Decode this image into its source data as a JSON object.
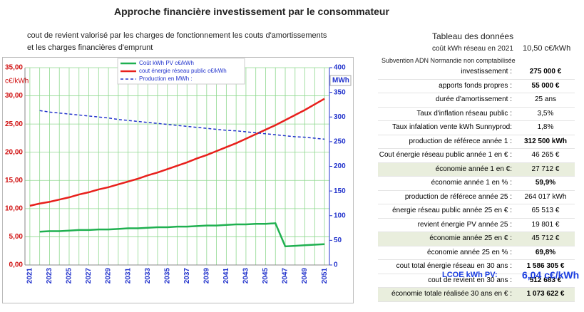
{
  "header": {
    "title": "Approche financière investissement par le consommateur",
    "lines": [
      "cout de revient valorisé  par les charges de  fonctionnement les couts d'amortissements",
      "et les charges financières d'emprunt"
    ]
  },
  "panel": {
    "title": "Tableau des données",
    "ref_label": "coût kWh réseau en 2021",
    "ref_value": "10,50 c€/kWh",
    "note": "Subvention ADN Normandie non comptabilisée",
    "rows": [
      [
        "investissement :",
        "275 000 €"
      ],
      [
        "apports fonds propres :",
        "55 000 €"
      ],
      [
        "durée d'amortissement :",
        "25 ans"
      ],
      [
        "Taux d'inflation réseau public :",
        "3,5%"
      ],
      [
        "Taux infalation vente kWh Sunnyprod:",
        "1,8%"
      ],
      [
        "production de référece année 1 :",
        "312 500 kWh"
      ],
      [
        "Cout énergie réseau public année 1 en € :",
        "46 265 €"
      ],
      [
        "économie année 1 en €:",
        "27 712 €"
      ],
      [
        "économie année 1 en %  :",
        "59,9%"
      ],
      [
        "production de référece année 25 :",
        "264 017 kWh"
      ],
      [
        "énergie réseau public année 25 en € :",
        "65 513 €"
      ],
      [
        "revient énergie PV année 25 :",
        "19 801 €"
      ],
      [
        "économie année  25 en € :",
        "45 712 €"
      ],
      [
        "économie année  25 en % :",
        "69,8%"
      ],
      [
        "cout total énergie réseau en 30 ans :",
        "1 586 305 €"
      ],
      [
        "cout de revient en 30 ans :",
        "512 683 €"
      ],
      [
        "économie totale réalisée 30 ans  en € :",
        "1 073 622 €"
      ]
    ],
    "lcoe_label": "LCOE kWh PV:",
    "lcoe_value": "6,04 c€/kWh"
  },
  "chart_data": {
    "type": "line",
    "y_label": "c€/kWh",
    "y2_label": "MWh",
    "grid": true,
    "categories": [
      "2021",
      null,
      "2023",
      null,
      "2025",
      null,
      "2027",
      null,
      "2029",
      null,
      "2031",
      null,
      "2033",
      null,
      "2035",
      null,
      "2037",
      null,
      "2039",
      null,
      "2041",
      null,
      "2043",
      null,
      "2045",
      null,
      "2047",
      null,
      "2049",
      null,
      "2051"
    ],
    "ylim": [
      0,
      35
    ],
    "yticks": [
      {
        "value": 0,
        "label": "0,00"
      },
      {
        "value": 5,
        "label": "5,00"
      },
      {
        "value": 10,
        "label": "10,00"
      },
      {
        "value": 15,
        "label": "15,00"
      },
      {
        "value": 20,
        "label": "20,00"
      },
      {
        "value": 25,
        "label": "25,00"
      },
      {
        "value": 30,
        "label": "30,00"
      },
      {
        "value": 35,
        "label": "35,00"
      }
    ],
    "y2lim": [
      0,
      400
    ],
    "y2ticks": [
      0,
      50,
      100,
      150,
      200,
      250,
      300,
      350,
      400
    ],
    "series": [
      {
        "name": "Coût kWh PV c€/kWh",
        "color": "#1fb050",
        "dashed": false,
        "values": [
          null,
          5.9,
          6.0,
          6.0,
          6.1,
          6.2,
          6.2,
          6.3,
          6.3,
          6.4,
          6.5,
          6.5,
          6.6,
          6.7,
          6.7,
          6.8,
          6.8,
          6.9,
          7.0,
          7.0,
          7.1,
          7.2,
          7.2,
          7.3,
          7.3,
          7.4,
          3.3,
          3.4,
          3.5,
          3.6,
          3.7
        ]
      },
      {
        "name": "cout énergie réseau public c€/kWh",
        "color": "#e8201c",
        "dashed": false,
        "values": [
          10.5,
          10.9,
          11.2,
          11.6,
          12.0,
          12.5,
          12.9,
          13.4,
          13.8,
          14.3,
          14.8,
          15.3,
          15.9,
          16.4,
          17.0,
          17.6,
          18.2,
          18.9,
          19.5,
          20.2,
          20.9,
          21.6,
          22.4,
          23.2,
          24.0,
          24.8,
          25.7,
          26.6,
          27.5,
          28.5,
          29.5
        ]
      },
      {
        "name": "Production en MWh :",
        "color": "#2233cc",
        "dashed": true,
        "axis": "y2",
        "values": [
          null,
          313,
          310,
          308,
          306,
          304,
          302,
          300,
          298,
          295,
          293,
          291,
          289,
          287,
          285,
          283,
          281,
          279,
          277,
          275,
          273,
          272,
          270,
          268,
          266,
          264,
          262,
          260,
          259,
          257,
          255
        ]
      }
    ]
  }
}
